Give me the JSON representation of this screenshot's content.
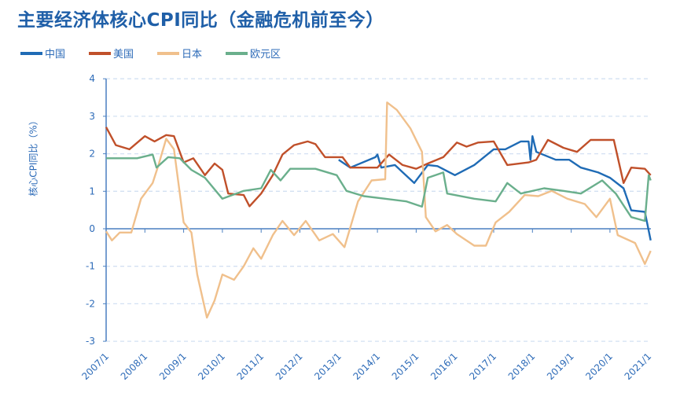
{
  "title": "主要经济体核心CPI同比（金融危机前至今）",
  "legend": [
    "中国",
    "美国",
    "日本",
    "欧元区"
  ],
  "chart_data": {
    "type": "line",
    "title": "主要经济体核心CPI同比（金融危机前至今）",
    "xlabel": "",
    "ylabel": "核心CPI同比（%）",
    "ylim": [
      -3,
      4
    ],
    "yticks": [
      "4",
      "3",
      "2",
      "1",
      "0",
      "-1",
      "-2",
      "-3"
    ],
    "xlim": [
      2007.0,
      2021.1
    ],
    "xticks": [
      "2007/1",
      "2008/1",
      "2009/1",
      "2010/1",
      "2011/1",
      "2012/1",
      "2013/1",
      "2014/1",
      "2015/1",
      "2016/1",
      "2017/1",
      "2018/1",
      "2019/1",
      "2020/1",
      "2021/1"
    ],
    "grid": true,
    "legend_position": "top-left",
    "series": [
      {
        "name": "中国",
        "color": "#1f6bb5",
        "x": [
          2013.0,
          2013.3,
          2013.95,
          2014.0,
          2014.1,
          2014.45,
          2014.95,
          2015.3,
          2015.55,
          2016.0,
          2016.5,
          2017.0,
          2017.3,
          2017.7,
          2017.9,
          2017.95,
          2018.0,
          2018.1,
          2018.6,
          2018.95,
          2019.25,
          2019.7,
          2020.0,
          2020.35,
          2020.55,
          2020.9,
          2021.05
        ],
        "y": [
          1.84,
          1.63,
          1.91,
          1.98,
          1.63,
          1.7,
          1.22,
          1.7,
          1.67,
          1.43,
          1.7,
          2.12,
          2.12,
          2.33,
          2.33,
          1.84,
          2.47,
          2.05,
          1.84,
          1.84,
          1.63,
          1.5,
          1.36,
          1.08,
          0.49,
          0.45,
          -0.31
        ]
      },
      {
        "name": "美国",
        "color": "#c0502a",
        "x": [
          2007.0,
          2007.25,
          2007.6,
          2008.0,
          2008.25,
          2008.55,
          2008.75,
          2009.0,
          2009.25,
          2009.55,
          2009.8,
          2010.0,
          2010.15,
          2010.55,
          2010.7,
          2011.0,
          2011.3,
          2011.55,
          2011.85,
          2012.2,
          2012.4,
          2012.65,
          2013.1,
          2013.3,
          2013.75,
          2014.0,
          2014.3,
          2014.65,
          2015.0,
          2015.3,
          2015.7,
          2016.05,
          2016.3,
          2016.6,
          2017.0,
          2017.35,
          2017.9,
          2018.1,
          2018.4,
          2018.8,
          2019.15,
          2019.5,
          2020.1,
          2020.35,
          2020.55,
          2020.9,
          2021.05
        ],
        "y": [
          2.71,
          2.23,
          2.12,
          2.47,
          2.33,
          2.5,
          2.47,
          1.77,
          1.88,
          1.43,
          1.74,
          1.57,
          0.94,
          0.9,
          0.6,
          0.94,
          1.43,
          1.98,
          2.23,
          2.33,
          2.26,
          1.91,
          1.91,
          1.63,
          1.63,
          1.63,
          1.98,
          1.7,
          1.6,
          1.74,
          1.91,
          2.3,
          2.19,
          2.3,
          2.33,
          1.7,
          1.77,
          1.84,
          2.37,
          2.16,
          2.05,
          2.37,
          2.37,
          1.22,
          1.63,
          1.6,
          1.43
        ]
      },
      {
        "name": "日本",
        "color": "#f0c08c",
        "x": [
          2007.0,
          2007.15,
          2007.35,
          2007.65,
          2007.9,
          2008.2,
          2008.35,
          2008.55,
          2008.75,
          2009.0,
          2009.2,
          2009.35,
          2009.6,
          2009.8,
          2010.0,
          2010.3,
          2010.55,
          2010.8,
          2011.0,
          2011.3,
          2011.55,
          2011.85,
          2012.15,
          2012.5,
          2012.85,
          2013.15,
          2013.5,
          2013.85,
          2014.2,
          2014.25,
          2014.5,
          2014.85,
          2015.15,
          2015.25,
          2015.5,
          2015.8,
          2016.05,
          2016.5,
          2016.8,
          2017.05,
          2017.4,
          2017.8,
          2018.15,
          2018.5,
          2018.9,
          2019.35,
          2019.65,
          2020.0,
          2020.2,
          2020.65,
          2020.9,
          2021.05
        ],
        "y": [
          -0.07,
          -0.31,
          -0.1,
          -0.1,
          0.8,
          1.22,
          1.7,
          2.4,
          2.12,
          0.17,
          -0.1,
          -1.22,
          -2.37,
          -1.91,
          -1.22,
          -1.36,
          -1.0,
          -0.52,
          -0.8,
          -0.17,
          0.21,
          -0.17,
          0.21,
          -0.31,
          -0.14,
          -0.49,
          0.73,
          1.29,
          1.32,
          3.37,
          3.17,
          2.68,
          2.05,
          0.31,
          -0.07,
          0.1,
          -0.14,
          -0.45,
          -0.45,
          0.17,
          0.45,
          0.9,
          0.87,
          1.01,
          0.8,
          0.66,
          0.31,
          0.8,
          -0.17,
          -0.38,
          -0.94,
          -0.59
        ]
      },
      {
        "name": "欧元区",
        "color": "#6aaf8c",
        "x": [
          2007.0,
          2007.8,
          2008.2,
          2008.3,
          2008.6,
          2008.9,
          2009.2,
          2009.55,
          2010.0,
          2010.55,
          2011.0,
          2011.25,
          2011.5,
          2011.75,
          2012.4,
          2012.95,
          2013.2,
          2013.65,
          2014.2,
          2014.75,
          2015.15,
          2015.3,
          2015.7,
          2015.8,
          2016.5,
          2017.05,
          2017.35,
          2017.7,
          2018.3,
          2018.8,
          2019.25,
          2019.8,
          2020.15,
          2020.55,
          2020.9,
          2021.0,
          2021.05
        ],
        "y": [
          1.88,
          1.88,
          1.98,
          1.63,
          1.91,
          1.88,
          1.57,
          1.36,
          0.8,
          1.01,
          1.08,
          1.57,
          1.29,
          1.6,
          1.6,
          1.43,
          1.01,
          0.87,
          0.8,
          0.73,
          0.59,
          1.36,
          1.5,
          0.94,
          0.8,
          0.73,
          1.22,
          0.94,
          1.08,
          1.01,
          0.94,
          1.29,
          0.94,
          0.31,
          0.21,
          1.43,
          1.29
        ]
      }
    ]
  }
}
